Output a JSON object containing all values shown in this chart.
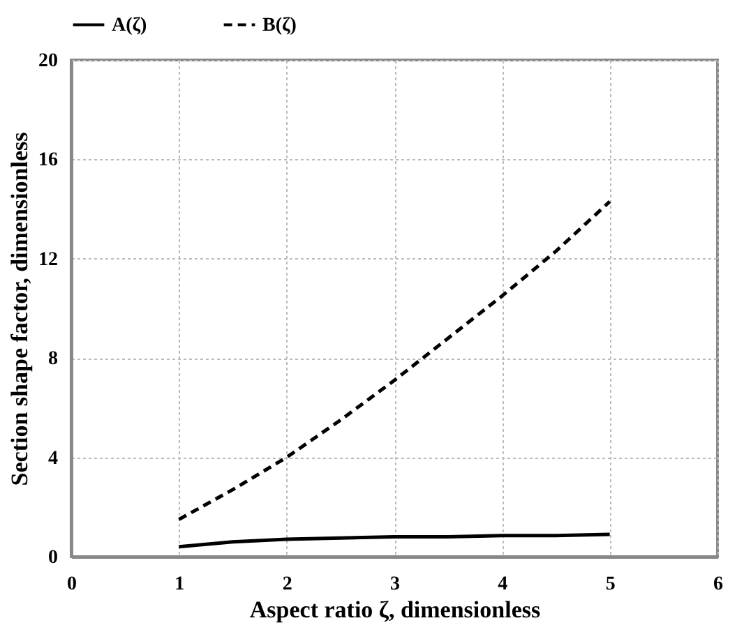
{
  "chart_data": {
    "type": "line",
    "xlabel": "Aspect ratio ζ,  dimensionless",
    "ylabel": "Section shape factor, dimensionless",
    "x": [
      1,
      1.5,
      2,
      2.5,
      3,
      3.5,
      4,
      4.5,
      5
    ],
    "series": [
      {
        "name": "A(ζ)",
        "color": "#000000",
        "line_style": "solid",
        "values": [
          0.4,
          0.6,
          0.7,
          0.75,
          0.8,
          0.8,
          0.85,
          0.85,
          0.9
        ]
      },
      {
        "name": "B(ζ)",
        "color": "#000000",
        "line_style": "dashed",
        "values": [
          1.5,
          2.7,
          4.0,
          5.5,
          7.1,
          8.8,
          10.5,
          12.3,
          14.3
        ]
      }
    ],
    "xlim": [
      0,
      6
    ],
    "xticks": [
      0,
      1,
      2,
      3,
      4,
      5,
      6
    ],
    "ylim": [
      0,
      20
    ],
    "yticks": [
      0,
      4,
      8,
      12,
      16,
      20
    ],
    "grid": true,
    "legend": "top",
    "marker": "none"
  }
}
